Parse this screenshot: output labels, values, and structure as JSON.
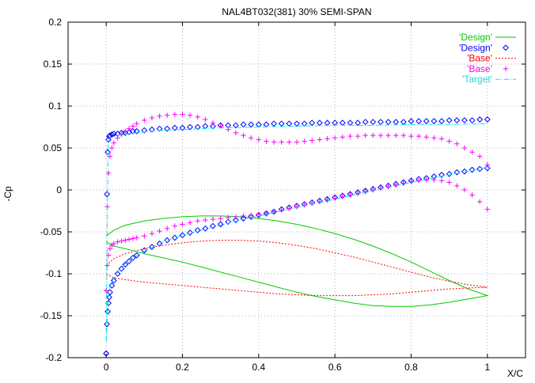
{
  "chart_data": {
    "type": "line",
    "title": "NAL4BT032(381)  30% SEMI-SPAN",
    "xlabel": "X/C",
    "ylabel": "-Cp",
    "xlim": [
      -0.1,
      1.1
    ],
    "ylim": [
      -0.2,
      0.2
    ],
    "xticks": [
      "0",
      "0.2",
      "0.4",
      "0.6",
      "0.8",
      "1"
    ],
    "xtick_values": [
      0,
      0.2,
      0.4,
      0.6,
      0.8,
      1.0
    ],
    "yticks": [
      "0.2",
      "0.15",
      "0.1",
      "0.05",
      "0",
      "-0.05",
      "-0.1",
      "-0.15",
      "-0.2"
    ],
    "ytick_values": [
      0.2,
      0.15,
      0.1,
      0.05,
      0,
      -0.05,
      -0.1,
      -0.15,
      -0.2
    ],
    "grid": true,
    "legend_position": "top-right",
    "series": [
      {
        "name": "'Design'",
        "style": "line",
        "color": "#00cc00",
        "x": [
          0.0,
          0.02,
          0.05,
          0.1,
          0.15,
          0.2,
          0.25,
          0.3,
          0.35,
          0.4,
          0.45,
          0.5,
          0.55,
          0.6,
          0.65,
          0.7,
          0.75,
          0.8,
          0.85,
          0.9,
          0.95,
          1.0,
          0.95,
          0.9,
          0.85,
          0.8,
          0.75,
          0.7,
          0.65,
          0.6,
          0.55,
          0.5,
          0.45,
          0.4,
          0.35,
          0.3,
          0.25,
          0.2,
          0.15,
          0.1,
          0.05,
          0.02,
          0.0
        ],
        "y": [
          -0.055,
          -0.048,
          -0.042,
          -0.037,
          -0.034,
          -0.032,
          -0.031,
          -0.031,
          -0.032,
          -0.034,
          -0.037,
          -0.041,
          -0.046,
          -0.052,
          -0.059,
          -0.067,
          -0.076,
          -0.086,
          -0.097,
          -0.108,
          -0.118,
          -0.126,
          -0.13,
          -0.134,
          -0.137,
          -0.139,
          -0.139,
          -0.138,
          -0.135,
          -0.131,
          -0.127,
          -0.122,
          -0.116,
          -0.11,
          -0.104,
          -0.098,
          -0.092,
          -0.086,
          -0.081,
          -0.076,
          -0.07,
          -0.067,
          -0.062
        ]
      },
      {
        "name": "'Design'",
        "style": "points-diamond",
        "color": "#0000ff",
        "x": [
          0.0,
          0.002,
          0.004,
          0.006,
          0.008,
          0.01,
          0.015,
          0.02,
          0.03,
          0.04,
          0.05,
          0.06,
          0.07,
          0.08,
          0.1,
          0.12,
          0.14,
          0.16,
          0.18,
          0.2,
          0.22,
          0.24,
          0.26,
          0.28,
          0.3,
          0.32,
          0.34,
          0.36,
          0.38,
          0.4,
          0.42,
          0.44,
          0.46,
          0.48,
          0.5,
          0.52,
          0.54,
          0.56,
          0.58,
          0.6,
          0.62,
          0.64,
          0.66,
          0.68,
          0.7,
          0.72,
          0.74,
          0.76,
          0.78,
          0.8,
          0.82,
          0.84,
          0.86,
          0.88,
          0.9,
          0.92,
          0.94,
          0.96,
          0.98,
          1.0
        ],
        "y": [
          -0.195,
          -0.005,
          0.045,
          0.06,
          0.064,
          0.065,
          0.066,
          0.067,
          0.067,
          0.068,
          0.068,
          0.069,
          0.07,
          0.07,
          0.071,
          0.072,
          0.073,
          0.073,
          0.074,
          0.074,
          0.075,
          0.075,
          0.076,
          0.076,
          0.077,
          0.077,
          0.077,
          0.078,
          0.078,
          0.078,
          0.078,
          0.079,
          0.079,
          0.079,
          0.079,
          0.079,
          0.08,
          0.08,
          0.08,
          0.08,
          0.08,
          0.08,
          0.08,
          0.081,
          0.081,
          0.081,
          0.081,
          0.081,
          0.081,
          0.082,
          0.082,
          0.082,
          0.082,
          0.082,
          0.083,
          0.083,
          0.083,
          0.083,
          0.084,
          0.084
        ]
      },
      {
        "name": "'Design'",
        "style": "points-diamond",
        "color": "#0000ff",
        "x": [
          0.0,
          0.002,
          0.004,
          0.006,
          0.008,
          0.01,
          0.015,
          0.02,
          0.03,
          0.04,
          0.05,
          0.06,
          0.07,
          0.08,
          0.1,
          0.12,
          0.14,
          0.16,
          0.18,
          0.2,
          0.22,
          0.24,
          0.26,
          0.28,
          0.3,
          0.32,
          0.34,
          0.36,
          0.38,
          0.4,
          0.42,
          0.44,
          0.46,
          0.48,
          0.5,
          0.52,
          0.54,
          0.56,
          0.58,
          0.6,
          0.62,
          0.64,
          0.66,
          0.68,
          0.7,
          0.72,
          0.74,
          0.76,
          0.78,
          0.8,
          0.82,
          0.84,
          0.86,
          0.88,
          0.9,
          0.92,
          0.94,
          0.96,
          0.98,
          1.0
        ],
        "y": [
          -0.195,
          -0.16,
          -0.145,
          -0.135,
          -0.128,
          -0.122,
          -0.114,
          -0.108,
          -0.1,
          -0.094,
          -0.089,
          -0.085,
          -0.081,
          -0.078,
          -0.072,
          -0.068,
          -0.064,
          -0.06,
          -0.057,
          -0.054,
          -0.051,
          -0.048,
          -0.046,
          -0.043,
          -0.041,
          -0.038,
          -0.036,
          -0.034,
          -0.032,
          -0.03,
          -0.028,
          -0.026,
          -0.023,
          -0.021,
          -0.019,
          -0.017,
          -0.015,
          -0.013,
          -0.011,
          -0.009,
          -0.007,
          -0.005,
          -0.003,
          -0.001,
          0.001,
          0.003,
          0.005,
          0.007,
          0.009,
          0.011,
          0.013,
          0.014,
          0.016,
          0.018,
          0.019,
          0.021,
          0.022,
          0.024,
          0.025,
          0.026
        ]
      },
      {
        "name": "'Base'",
        "style": "dotted-line",
        "color": "#ff0000",
        "x": [
          0.0,
          0.02,
          0.05,
          0.1,
          0.15,
          0.2,
          0.25,
          0.3,
          0.35,
          0.4,
          0.45,
          0.5,
          0.55,
          0.6,
          0.65,
          0.7,
          0.75,
          0.8,
          0.85,
          0.9,
          0.95,
          1.0,
          0.95,
          0.9,
          0.85,
          0.8,
          0.75,
          0.7,
          0.65,
          0.6,
          0.55,
          0.5,
          0.45,
          0.4,
          0.35,
          0.3,
          0.25,
          0.2,
          0.15,
          0.1,
          0.05,
          0.02,
          0.0
        ],
        "y": [
          -0.09,
          -0.082,
          -0.076,
          -0.07,
          -0.066,
          -0.063,
          -0.061,
          -0.06,
          -0.06,
          -0.061,
          -0.063,
          -0.066,
          -0.07,
          -0.075,
          -0.08,
          -0.086,
          -0.092,
          -0.098,
          -0.104,
          -0.109,
          -0.113,
          -0.116,
          -0.117,
          -0.118,
          -0.12,
          -0.122,
          -0.124,
          -0.125,
          -0.126,
          -0.126,
          -0.126,
          -0.125,
          -0.124,
          -0.122,
          -0.12,
          -0.118,
          -0.116,
          -0.114,
          -0.112,
          -0.11,
          -0.107,
          -0.105,
          -0.1
        ]
      },
      {
        "name": "'Base'",
        "style": "points-plus",
        "color": "#ff00ff",
        "x": [
          0.0,
          0.003,
          0.006,
          0.01,
          0.015,
          0.02,
          0.03,
          0.04,
          0.05,
          0.06,
          0.07,
          0.08,
          0.1,
          0.12,
          0.14,
          0.16,
          0.18,
          0.2,
          0.22,
          0.24,
          0.26,
          0.28,
          0.3,
          0.32,
          0.34,
          0.36,
          0.38,
          0.4,
          0.42,
          0.44,
          0.46,
          0.48,
          0.5,
          0.52,
          0.54,
          0.56,
          0.58,
          0.6,
          0.62,
          0.64,
          0.66,
          0.68,
          0.7,
          0.72,
          0.74,
          0.76,
          0.78,
          0.8,
          0.82,
          0.84,
          0.86,
          0.88,
          0.9,
          0.92,
          0.94,
          0.96,
          0.98,
          1.0
        ],
        "y": [
          -0.12,
          -0.02,
          0.02,
          0.04,
          0.05,
          0.056,
          0.062,
          0.066,
          0.07,
          0.073,
          0.076,
          0.079,
          0.083,
          0.086,
          0.088,
          0.089,
          0.09,
          0.09,
          0.089,
          0.087,
          0.084,
          0.08,
          0.076,
          0.072,
          0.068,
          0.065,
          0.062,
          0.06,
          0.058,
          0.057,
          0.057,
          0.057,
          0.057,
          0.058,
          0.059,
          0.06,
          0.061,
          0.062,
          0.063,
          0.064,
          0.064,
          0.065,
          0.065,
          0.065,
          0.065,
          0.065,
          0.065,
          0.064,
          0.064,
          0.063,
          0.062,
          0.061,
          0.058,
          0.055,
          0.05,
          0.045,
          0.04,
          0.03
        ]
      },
      {
        "name": "'Base'",
        "style": "points-plus",
        "color": "#ff00ff",
        "x": [
          0.0,
          0.003,
          0.006,
          0.01,
          0.015,
          0.02,
          0.03,
          0.04,
          0.05,
          0.06,
          0.07,
          0.08,
          0.1,
          0.12,
          0.14,
          0.16,
          0.18,
          0.2,
          0.22,
          0.24,
          0.26,
          0.28,
          0.3,
          0.32,
          0.34,
          0.36,
          0.38,
          0.4,
          0.42,
          0.44,
          0.46,
          0.48,
          0.5,
          0.52,
          0.54,
          0.56,
          0.58,
          0.6,
          0.62,
          0.64,
          0.66,
          0.68,
          0.7,
          0.72,
          0.74,
          0.76,
          0.78,
          0.8,
          0.82,
          0.84,
          0.86,
          0.88,
          0.9,
          0.92,
          0.94,
          0.96,
          0.98,
          1.0
        ],
        "y": [
          -0.12,
          -0.09,
          -0.078,
          -0.07,
          -0.066,
          -0.064,
          -0.062,
          -0.061,
          -0.06,
          -0.059,
          -0.058,
          -0.057,
          -0.055,
          -0.052,
          -0.049,
          -0.046,
          -0.043,
          -0.041,
          -0.039,
          -0.037,
          -0.036,
          -0.035,
          -0.034,
          -0.033,
          -0.032,
          -0.031,
          -0.03,
          -0.029,
          -0.028,
          -0.026,
          -0.024,
          -0.022,
          -0.02,
          -0.018,
          -0.016,
          -0.014,
          -0.012,
          -0.01,
          -0.008,
          -0.006,
          -0.004,
          -0.002,
          0.0,
          0.002,
          0.004,
          0.006,
          0.008,
          0.01,
          0.011,
          0.012,
          0.012,
          0.011,
          0.009,
          0.005,
          0.0,
          -0.006,
          -0.014,
          -0.023
        ]
      },
      {
        "name": "'Target'",
        "style": "dashdot-line",
        "color": "#00e5ee",
        "x": [
          0.0,
          0.005,
          0.01,
          0.02,
          0.04,
          0.06,
          0.1,
          0.15,
          0.2,
          0.3,
          0.4,
          0.5,
          0.6,
          0.7,
          0.8,
          0.9,
          1.0
        ],
        "y": [
          -0.18,
          0.055,
          0.062,
          0.064,
          0.066,
          0.067,
          0.069,
          0.071,
          0.072,
          0.074,
          0.075,
          0.076,
          0.077,
          0.077,
          0.078,
          0.078,
          0.079
        ]
      },
      {
        "name": "'Target'",
        "style": "dashdot-line",
        "color": "#00e5ee",
        "x": [
          0.0,
          0.005,
          0.01,
          0.02,
          0.04,
          0.06,
          0.1,
          0.15,
          0.2,
          0.3,
          0.4,
          0.5,
          0.6,
          0.7,
          0.8,
          0.9,
          1.0
        ],
        "y": [
          -0.18,
          -0.13,
          -0.115,
          -0.105,
          -0.092,
          -0.084,
          -0.073,
          -0.062,
          -0.054,
          -0.042,
          -0.031,
          -0.021,
          -0.011,
          -0.001,
          0.009,
          0.018,
          0.027
        ]
      }
    ],
    "legend": [
      {
        "label": "'Design'",
        "color": "#00cc00",
        "style": "line"
      },
      {
        "label": "'Design'",
        "color": "#0000ff",
        "style": "points-diamond"
      },
      {
        "label": "'Base'",
        "color": "#ff0000",
        "style": "dotted-line"
      },
      {
        "label": "'Base'",
        "color": "#ff00ff",
        "style": "points-plus"
      },
      {
        "label": "'Target'",
        "color": "#00e5ee",
        "style": "dashdot-line"
      }
    ]
  }
}
